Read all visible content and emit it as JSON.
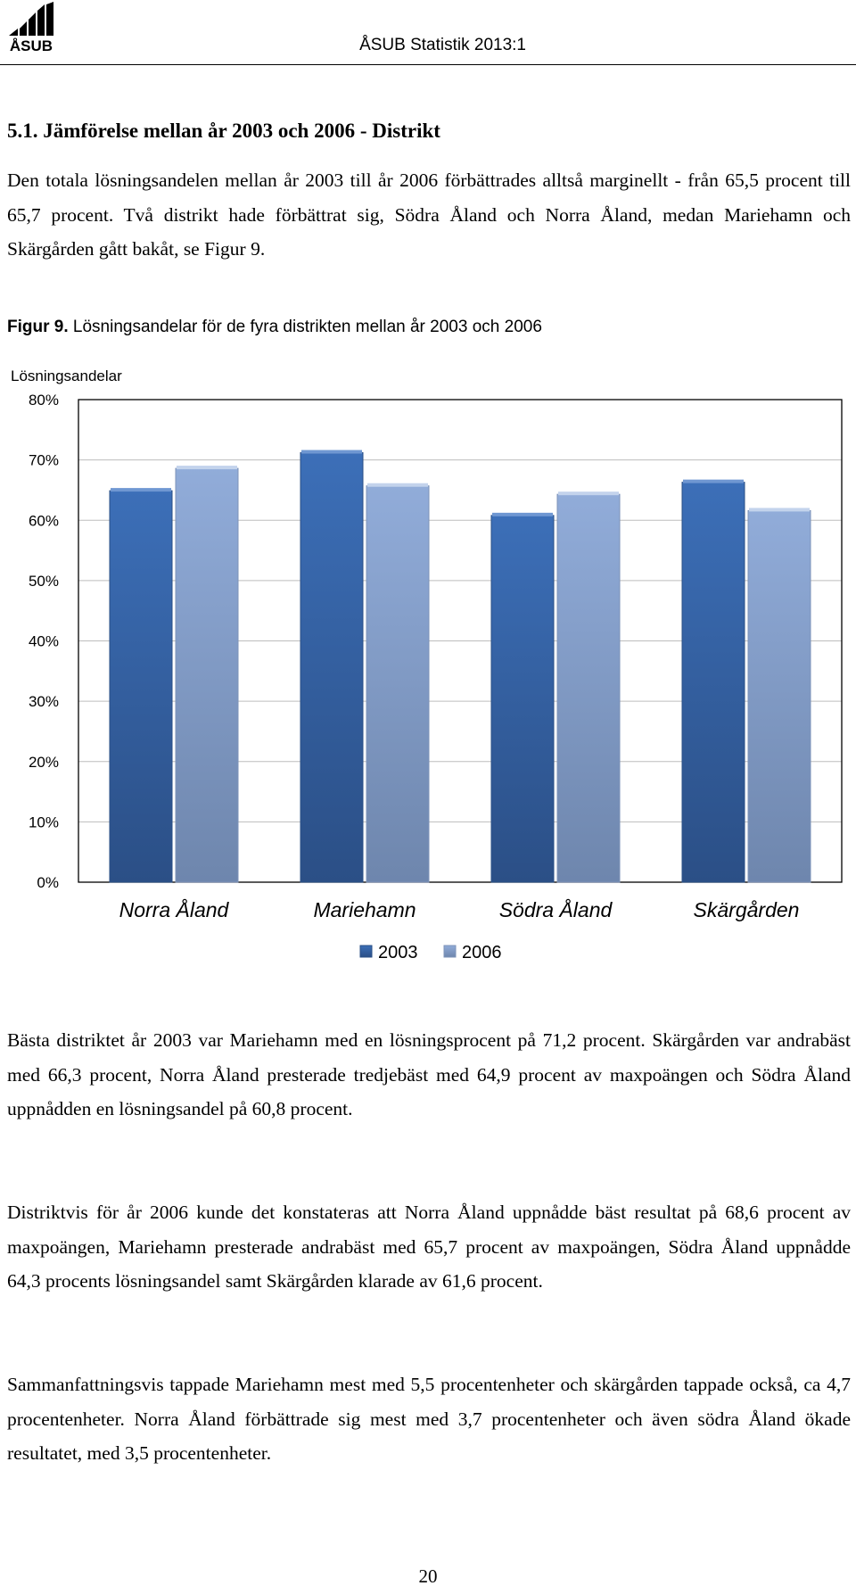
{
  "header": {
    "logo_text": "ÅSUB",
    "title": "ÅSUB Statistik 2013:1"
  },
  "section": {
    "title": "5.1. Jämförelse mellan år 2003 och 2006 - Distrikt",
    "intro": "Den totala lösningsandelen mellan år 2003 till år 2006 förbättrades alltså marginellt - från 65,5 procent till 65,7 procent. Två distrikt hade förbättrat sig, Södra Åland och Norra Åland, medan Mariehamn och Skärgården gått bakåt, se Figur 9."
  },
  "figure": {
    "label": "Figur 9.",
    "caption": " Lösningsandelar för de fyra distrikten mellan år 2003 och 2006"
  },
  "chart_data": {
    "type": "bar",
    "ylabel": "Lösningsandelar",
    "categories": [
      "Norra Åland",
      "Mariehamn",
      "Södra Åland",
      "Skärgården"
    ],
    "series": [
      {
        "name": "2003",
        "values": [
          64.9,
          71.2,
          60.8,
          66.3
        ],
        "color": "#3c6fb8"
      },
      {
        "name": "2006",
        "values": [
          68.6,
          65.7,
          64.3,
          61.6
        ],
        "color": "#91acd9"
      }
    ],
    "ylim": [
      0,
      80
    ],
    "yticks": [
      0,
      10,
      20,
      30,
      40,
      50,
      60,
      70,
      80
    ],
    "ytick_labels": [
      "0%",
      "10%",
      "20%",
      "30%",
      "40%",
      "50%",
      "60%",
      "70%",
      "80%"
    ],
    "grid": true,
    "legend": "bottom"
  },
  "body": {
    "best": "Bästa distriktet år 2003 var Mariehamn med en lösningsprocent på 71,2 procent. Skärgården var andrabäst med 66,3 procent, Norra Åland presterade tredjebäst med 64,9 procent av maxpoängen och Södra Åland uppnådden en lösningsandel på 60,8 procent.",
    "districts_2006": "Distriktvis för år 2006 kunde det konstateras att Norra Åland uppnådde bäst resultat på 68,6 procent av maxpoängen, Mariehamn presterade andrabäst med 65,7 procent av maxpoängen, Södra Åland uppnådde 64,3 procents lösningsandel samt Skärgården klarade av 61,6 procent.",
    "summary": "Sammanfattningsvis tappade Mariehamn mest med 5,5 procentenheter och skärgården tappade också, ca 4,7 procentenheter. Norra Åland förbättrade sig mest med 3,7 procentenheter och även södra Åland ökade resultatet, med 3,5 procentenheter."
  },
  "footer": {
    "page_number": "20"
  }
}
